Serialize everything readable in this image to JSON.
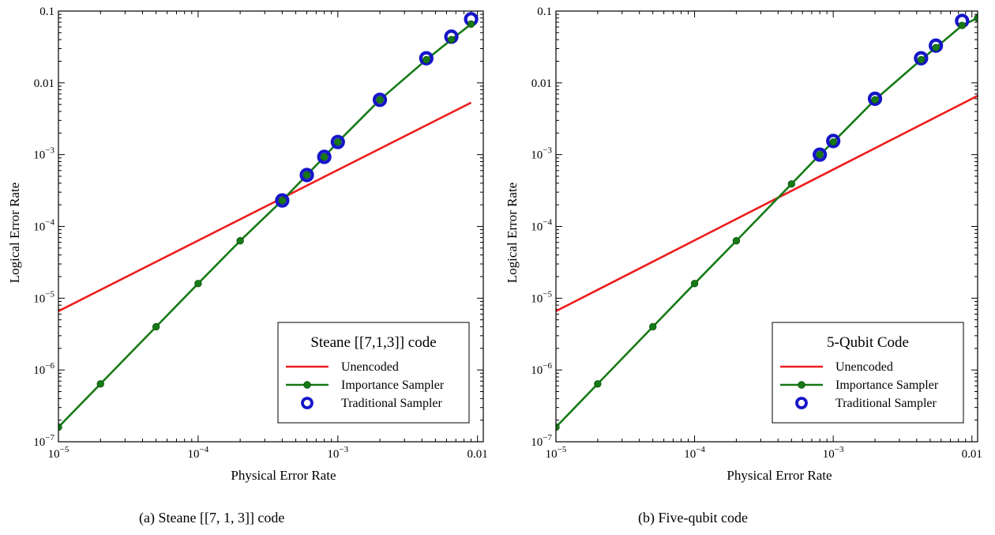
{
  "chart_data": [
    {
      "type": "line",
      "log_x": true,
      "log_y": true,
      "xlim": [
        1e-05,
        0.011
      ],
      "ylim": [
        1e-07,
        0.1
      ],
      "xlabel": "Physical Error Rate",
      "ylabel": "Logical Error Rate",
      "x_ticks": [
        {
          "base": "10",
          "exp": "−5",
          "value": 1e-05
        },
        {
          "base": "10",
          "exp": "−4",
          "value": 0.0001
        },
        {
          "base": "10",
          "exp": "−3",
          "value": 0.001
        },
        {
          "base": "0.01",
          "exp": "",
          "value": 0.01
        }
      ],
      "y_ticks": [
        {
          "base": "10",
          "exp": "−7",
          "value": 1e-07
        },
        {
          "base": "10",
          "exp": "−6",
          "value": 1e-06
        },
        {
          "base": "10",
          "exp": "−5",
          "value": 1e-05
        },
        {
          "base": "10",
          "exp": "−4",
          "value": 0.0001
        },
        {
          "base": "10",
          "exp": "−3",
          "value": 0.001
        },
        {
          "base": "0.01",
          "exp": "",
          "value": 0.01
        },
        {
          "base": "0.1",
          "exp": "",
          "value": 0.1
        }
      ],
      "legend_title": "Steane [[7,1,3]] code",
      "legend_position": "lower-right",
      "caption": "(a) Steane [[7, 1, 3]] code",
      "series": [
        {
          "name": "Unencoded",
          "kind": "line",
          "color": "#ee1c1c",
          "x": [
            1e-05,
            0.009
          ],
          "y": [
            6.6e-06,
            0.0053
          ]
        },
        {
          "name": "Importance Sampler",
          "kind": "line-marker",
          "color": "#167a16",
          "x": [
            1e-05,
            2e-05,
            5e-05,
            0.0001,
            0.0002,
            0.0004,
            0.0006,
            0.0008,
            0.001,
            0.002,
            0.0043,
            0.0065,
            0.009
          ],
          "y": [
            1.6e-07,
            6.4e-07,
            4e-06,
            1.6e-05,
            6.3e-05,
            0.00023,
            0.00052,
            0.00093,
            0.0015,
            0.0058,
            0.021,
            0.04,
            0.066
          ]
        },
        {
          "name": "Traditional Sampler",
          "kind": "marker",
          "color": "#1515c8",
          "x": [
            0.0004,
            0.0006,
            0.0008,
            0.001,
            0.002,
            0.0043,
            0.0065,
            0.009
          ],
          "y": [
            0.00023,
            0.00052,
            0.00093,
            0.0015,
            0.0058,
            0.022,
            0.044,
            0.077
          ]
        }
      ]
    },
    {
      "type": "line",
      "log_x": true,
      "log_y": true,
      "xlim": [
        1e-05,
        0.011
      ],
      "ylim": [
        1e-07,
        0.1
      ],
      "xlabel": "Physical Error Rate",
      "ylabel": "Logical Error Rate",
      "x_ticks": [
        {
          "base": "10",
          "exp": "−5",
          "value": 1e-05
        },
        {
          "base": "10",
          "exp": "−4",
          "value": 0.0001
        },
        {
          "base": "10",
          "exp": "−3",
          "value": 0.001
        },
        {
          "base": "0.01",
          "exp": "",
          "value": 0.01
        }
      ],
      "y_ticks": [
        {
          "base": "10",
          "exp": "−7",
          "value": 1e-07
        },
        {
          "base": "10",
          "exp": "−6",
          "value": 1e-06
        },
        {
          "base": "10",
          "exp": "−5",
          "value": 1e-05
        },
        {
          "base": "10",
          "exp": "−4",
          "value": 0.0001
        },
        {
          "base": "10",
          "exp": "−3",
          "value": 0.001
        },
        {
          "base": "0.01",
          "exp": "",
          "value": 0.01
        },
        {
          "base": "0.1",
          "exp": "",
          "value": 0.1
        }
      ],
      "legend_title": "5-Qubit Code",
      "legend_position": "lower-right",
      "caption": "(b) Five-qubit code",
      "series": [
        {
          "name": "Unencoded",
          "kind": "line",
          "color": "#ee1c1c",
          "x": [
            1e-05,
            0.011
          ],
          "y": [
            6.6e-06,
            0.0066
          ]
        },
        {
          "name": "Importance Sampler",
          "kind": "line-marker",
          "color": "#167a16",
          "x": [
            1e-05,
            2e-05,
            5e-05,
            0.0001,
            0.0002,
            0.0005,
            0.0008,
            0.001,
            0.002,
            0.0043,
            0.0055,
            0.0085,
            0.011
          ],
          "y": [
            1.6e-07,
            6.4e-07,
            4e-06,
            1.6e-05,
            6.3e-05,
            0.00039,
            0.001,
            0.0015,
            0.0058,
            0.021,
            0.031,
            0.063,
            0.08
          ]
        },
        {
          "name": "Traditional Sampler",
          "kind": "marker",
          "color": "#1515c8",
          "x": [
            0.0008,
            0.001,
            0.002,
            0.0043,
            0.0055,
            0.0085
          ],
          "y": [
            0.001,
            0.00155,
            0.006,
            0.022,
            0.033,
            0.073
          ]
        }
      ]
    }
  ]
}
